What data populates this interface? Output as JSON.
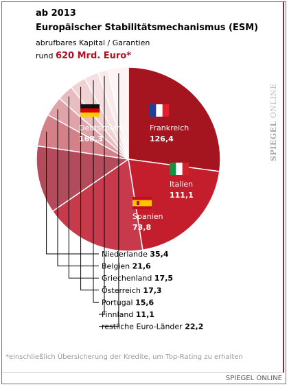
{
  "header": {
    "year": "ab 2013",
    "title": "Europäischer Stabilitätsmechanismus (ESM)",
    "subtitle": "abrufbares Kapital / Garantien",
    "total_prefix": "rund",
    "total_value": "620 Mrd. Euro*"
  },
  "watermark": {
    "brand_bold": "SPIEGEL",
    "brand_rest": " ONLINE"
  },
  "chart_data": {
    "type": "pie",
    "title": "Europäischer Stabilitätsmechanismus (ESM)",
    "total": "620 Mrd. Euro*",
    "start_angle_deg": 270,
    "slices": [
      {
        "label": "Deutschland",
        "value": 168.3,
        "display": "168,3",
        "color": "#a5151f",
        "flag": "de",
        "inside": true
      },
      {
        "label": "Frankreich",
        "value": 126.4,
        "display": "126,4",
        "color": "#c41e2c",
        "flag": "fr",
        "inside": true
      },
      {
        "label": "Italien",
        "value": 111.1,
        "display": "111,1",
        "color": "#c73a4c",
        "flag": "it",
        "inside": true
      },
      {
        "label": "Spanien",
        "value": 73.8,
        "display": "73,8",
        "color": "#b24b5b",
        "flag": "es",
        "inside": true
      },
      {
        "label": "Niederlande",
        "value": 35.4,
        "display": "35,4",
        "color": "#d38089",
        "inside": false
      },
      {
        "label": "Belgien",
        "value": 21.6,
        "display": "21,6",
        "color": "#e0a3aa",
        "inside": false
      },
      {
        "label": "Griechenland",
        "value": 17.5,
        "display": "17,5",
        "color": "#e9bcc1",
        "inside": false
      },
      {
        "label": "Österreich",
        "value": 17.3,
        "display": "17,3",
        "color": "#f0d1d4",
        "inside": false
      },
      {
        "label": "Portugal",
        "value": 15.6,
        "display": "15,6",
        "color": "#f5dfe1",
        "inside": false
      },
      {
        "label": "Finnland",
        "value": 11.1,
        "display": "11,1",
        "color": "#f9eaeb",
        "inside": false
      },
      {
        "label": "restliche Euro-Länder",
        "value": 22.2,
        "display": "22,2",
        "color": "#fcf4f5",
        "inside": false
      }
    ]
  },
  "footnote": "*einschließlich Übersicherung der Kredite, um Top-Rating zu erhalten",
  "footer": {
    "brand": "SPIEGEL ONLINE"
  }
}
